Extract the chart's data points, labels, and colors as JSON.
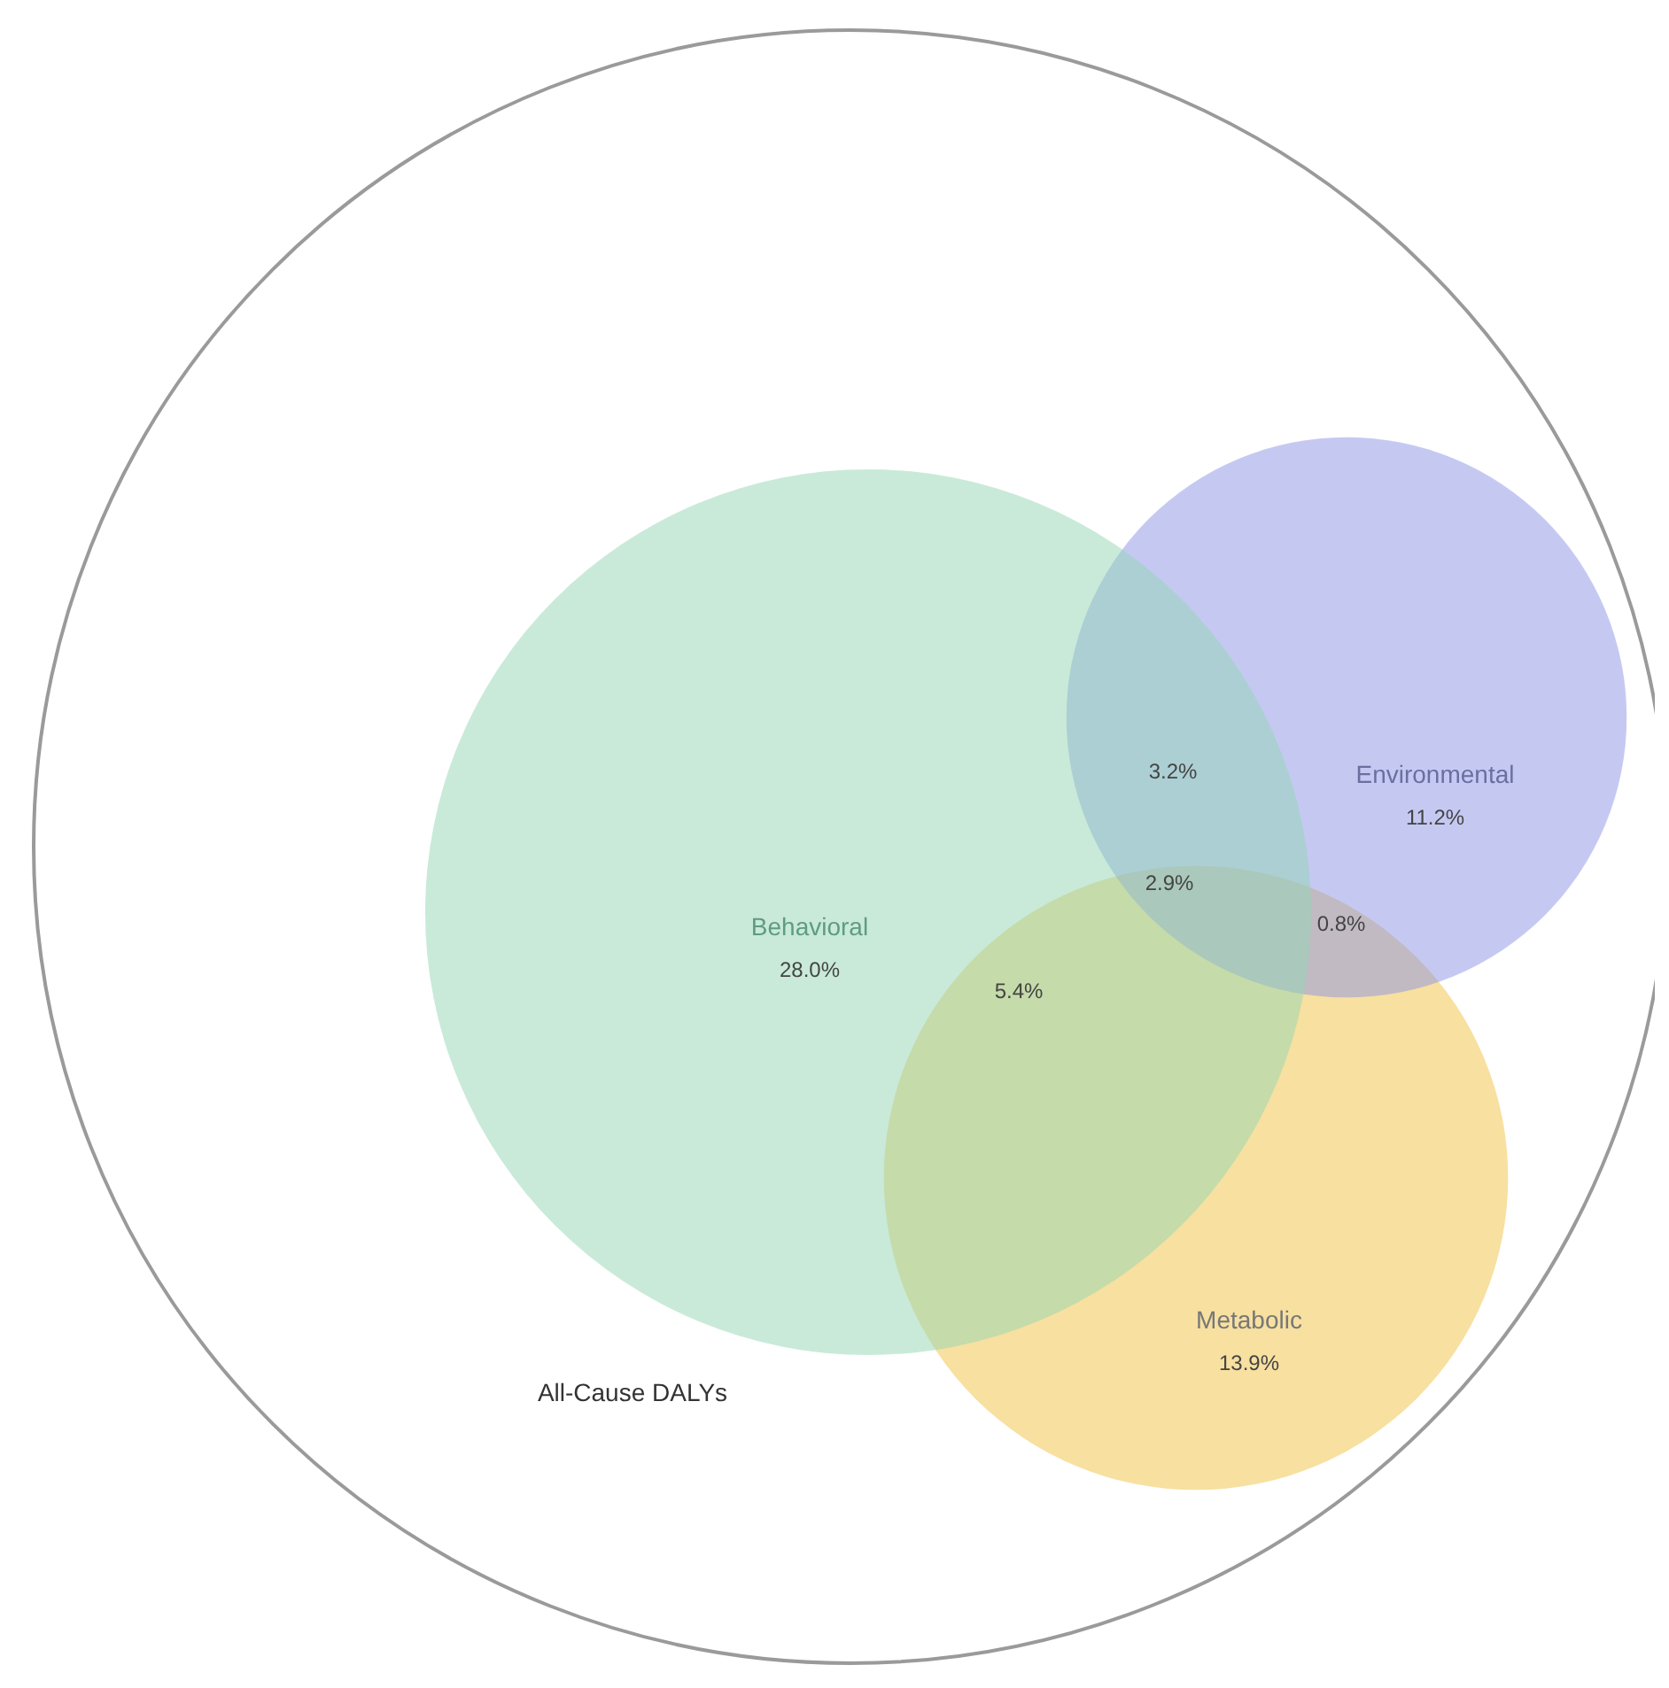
{
  "chart_data": {
    "type": "other",
    "categories": [
      "Behavioral",
      "Environmental",
      "Metabolic"
    ],
    "values": [
      28.0,
      11.2,
      13.9
    ],
    "value_labels": [
      "28.0%",
      "11.2%",
      "13.9%"
    ],
    "colors": [
      "#93d5b3",
      "#8b93e5",
      "#efc141"
    ],
    "annotations": [
      "3.2%",
      "2.9%",
      "0.8%",
      "5.4%",
      "All-Cause DALYs"
    ]
  }
}
